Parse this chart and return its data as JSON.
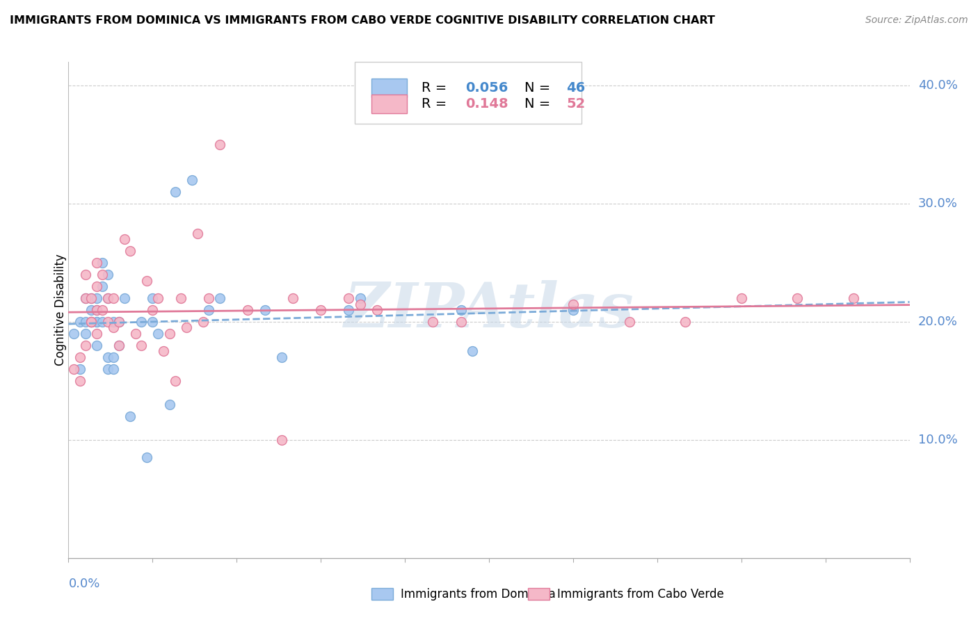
{
  "title": "IMMIGRANTS FROM DOMINICA VS IMMIGRANTS FROM CABO VERDE COGNITIVE DISABILITY CORRELATION CHART",
  "source": "Source: ZipAtlas.com",
  "ylabel": "Cognitive Disability",
  "xlim": [
    0.0,
    0.15
  ],
  "ylim": [
    0.0,
    0.42
  ],
  "color_dominica_fill": "#A8C8F0",
  "color_dominica_edge": "#7AAAD8",
  "color_cabo_verde_fill": "#F5B8C8",
  "color_cabo_verde_edge": "#E07898",
  "color_line_dominica": "#7AAAD8",
  "color_line_cabo_verde": "#E07898",
  "color_axis_labels": "#5588CC",
  "watermark": "ZIPAtlas",
  "dominica_x": [
    0.001,
    0.002,
    0.002,
    0.003,
    0.003,
    0.003,
    0.004,
    0.004,
    0.004,
    0.004,
    0.005,
    0.005,
    0.005,
    0.005,
    0.005,
    0.006,
    0.006,
    0.006,
    0.007,
    0.007,
    0.007,
    0.007,
    0.008,
    0.008,
    0.008,
    0.009,
    0.009,
    0.01,
    0.011,
    0.013,
    0.014,
    0.015,
    0.015,
    0.016,
    0.018,
    0.019,
    0.022,
    0.025,
    0.027,
    0.035,
    0.038,
    0.05,
    0.052,
    0.07,
    0.072,
    0.09
  ],
  "dominica_y": [
    0.19,
    0.2,
    0.16,
    0.22,
    0.2,
    0.19,
    0.2,
    0.2,
    0.21,
    0.22,
    0.2,
    0.21,
    0.22,
    0.2,
    0.18,
    0.23,
    0.25,
    0.2,
    0.24,
    0.22,
    0.17,
    0.16,
    0.2,
    0.17,
    0.16,
    0.2,
    0.18,
    0.22,
    0.12,
    0.2,
    0.085,
    0.2,
    0.22,
    0.19,
    0.13,
    0.31,
    0.32,
    0.21,
    0.22,
    0.21,
    0.17,
    0.21,
    0.22,
    0.21,
    0.175,
    0.21
  ],
  "cabo_verde_x": [
    0.001,
    0.002,
    0.002,
    0.003,
    0.003,
    0.003,
    0.004,
    0.004,
    0.004,
    0.005,
    0.005,
    0.005,
    0.005,
    0.006,
    0.006,
    0.007,
    0.007,
    0.008,
    0.008,
    0.009,
    0.009,
    0.01,
    0.011,
    0.012,
    0.013,
    0.014,
    0.015,
    0.016,
    0.017,
    0.018,
    0.019,
    0.02,
    0.021,
    0.023,
    0.024,
    0.025,
    0.027,
    0.032,
    0.038,
    0.04,
    0.045,
    0.05,
    0.052,
    0.055,
    0.065,
    0.07,
    0.09,
    0.1,
    0.11,
    0.12,
    0.13,
    0.14
  ],
  "cabo_verde_y": [
    0.16,
    0.15,
    0.17,
    0.24,
    0.22,
    0.18,
    0.2,
    0.22,
    0.2,
    0.19,
    0.21,
    0.23,
    0.25,
    0.24,
    0.21,
    0.22,
    0.2,
    0.195,
    0.22,
    0.2,
    0.18,
    0.27,
    0.26,
    0.19,
    0.18,
    0.235,
    0.21,
    0.22,
    0.175,
    0.19,
    0.15,
    0.22,
    0.195,
    0.275,
    0.2,
    0.22,
    0.35,
    0.21,
    0.1,
    0.22,
    0.21,
    0.22,
    0.215,
    0.21,
    0.2,
    0.2,
    0.215,
    0.2,
    0.2,
    0.22,
    0.22,
    0.22
  ]
}
